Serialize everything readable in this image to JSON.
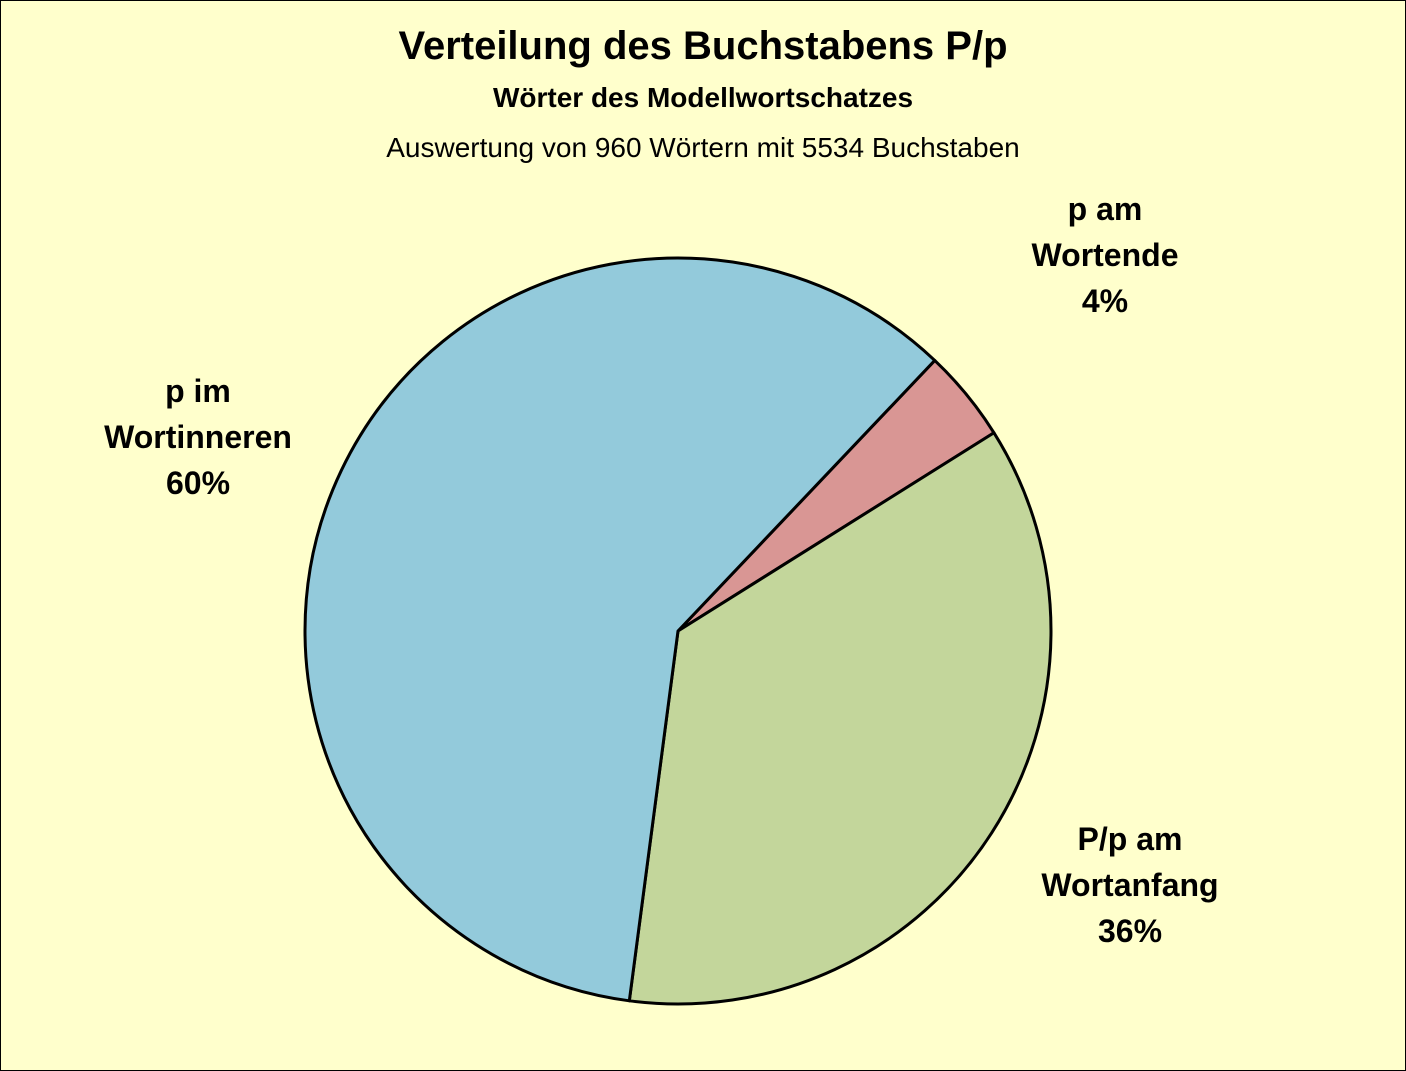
{
  "chart_data": {
    "type": "pie",
    "title": "Verteilung des Buchstabens P/p",
    "subtitle": "Wörter des Modellwortschatzes",
    "note": "Auswertung von 960 Wörtern mit 5534 Buchstaben",
    "slices": [
      {
        "label": "p am\nWortende",
        "percent_label": "4%",
        "value": 4,
        "color": "#D99694"
      },
      {
        "label": "P/p am\nWortanfang",
        "percent_label": "36%",
        "value": 36,
        "color": "#C3D69B"
      },
      {
        "label": "p im\nWortinneren",
        "percent_label": "60%",
        "value": 60,
        "color": "#93CADB"
      }
    ],
    "background": "#FFFFCC"
  }
}
